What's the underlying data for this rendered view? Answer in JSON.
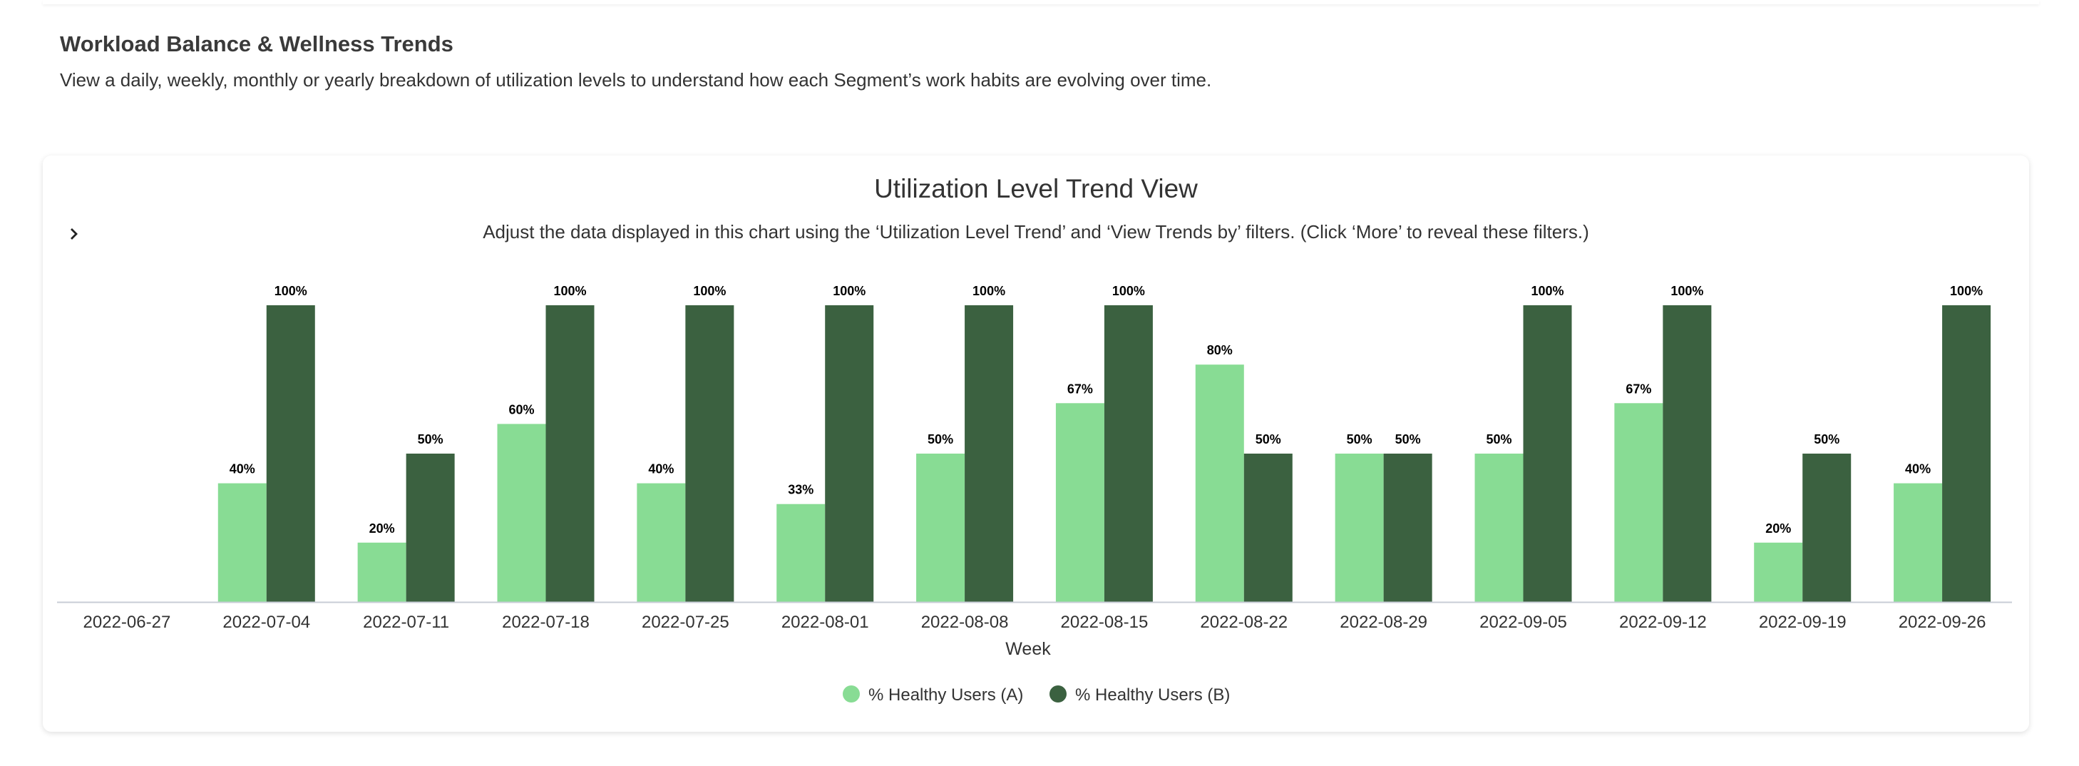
{
  "header": {
    "title": "Workload Balance & Wellness Trends",
    "subtitle": "View a daily, weekly, monthly or yearly breakdown of utilization levels to understand how each Segment’s work habits are evolving over time."
  },
  "card": {
    "title": "Utilization Level Trend View",
    "subtitle": "Adjust the data displayed in this chart using the ‘Utilization Level Trend’ and ‘View Trends by’ filters. (Click ‘More’ to reveal these filters.)",
    "expand_icon": "chevron-right-icon"
  },
  "colors": {
    "series_a": "#88dc94",
    "series_b": "#3b6140"
  },
  "chart_data": {
    "type": "bar",
    "xlabel": "Week",
    "ylabel": "",
    "ylim": [
      0,
      100
    ],
    "grid": false,
    "legend_position": "bottom",
    "categories": [
      "2022-06-27",
      "2022-07-04",
      "2022-07-11",
      "2022-07-18",
      "2022-07-25",
      "2022-08-01",
      "2022-08-08",
      "2022-08-15",
      "2022-08-22",
      "2022-08-29",
      "2022-09-05",
      "2022-09-12",
      "2022-09-19",
      "2022-09-26"
    ],
    "series": [
      {
        "name": "% Healthy Users (A)",
        "values": [
          null,
          40,
          20,
          60,
          40,
          33,
          50,
          67,
          80,
          50,
          50,
          67,
          20,
          40
        ]
      },
      {
        "name": "% Healthy Users (B)",
        "values": [
          null,
          100,
          50,
          100,
          100,
          100,
          100,
          100,
          50,
          50,
          100,
          100,
          50,
          100
        ]
      }
    ],
    "value_suffix": "%"
  }
}
